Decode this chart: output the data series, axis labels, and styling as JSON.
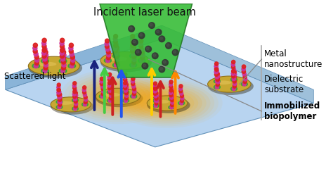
{
  "title": "Incident laser beam",
  "labels": {
    "scattered_light": "Scattered light",
    "metal_nanostructure": "Metal\nnanostructure",
    "dielectric_substrate": "Dielectric\nsubstrate",
    "immobilized_biopolymer": "Immobilized\nbiopolymer"
  },
  "colors": {
    "background": "#ffffff",
    "substrate_top": "#b8d4f0",
    "substrate_front": "#8ab4d8",
    "substrate_edge": "#6090b8",
    "disc": "#c8a832",
    "disc_edge": "#907018",
    "disc_shadow": "#303000",
    "laser_green": "#33bb33",
    "laser_dark_green": "#227722",
    "glow_hot": "#ff6600",
    "glow_warm": "#ffaa00",
    "arrow_dark_blue": "#1a237e",
    "arrow_green": "#44cc44",
    "arrow_red": "#cc2222",
    "arrow_blue": "#2255ee",
    "arrow_yellow": "#ffcc00",
    "arrow_orange": "#ff8800",
    "molecule_pink": "#cc3399",
    "molecule_red": "#dd2222",
    "molecule_green": "#33aa33",
    "molecule_dark": "#333333",
    "line_color": "#888888",
    "title_color": "#111111"
  },
  "figsize": [
    4.74,
    2.67
  ],
  "dpi": 100
}
